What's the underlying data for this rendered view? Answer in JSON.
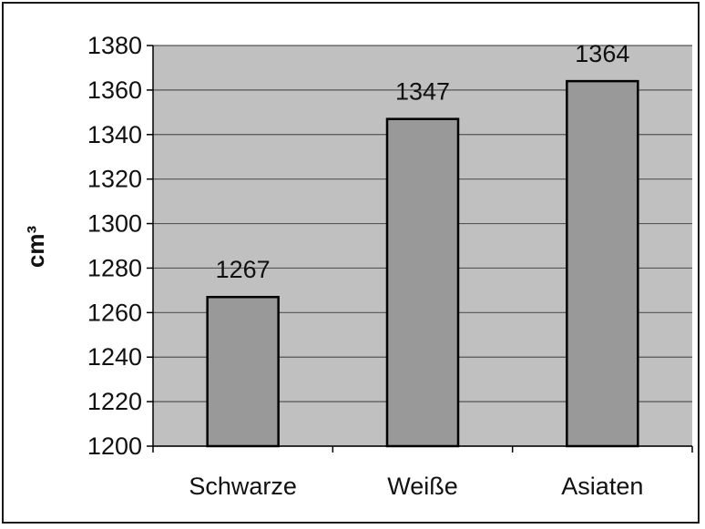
{
  "chart_data": {
    "type": "bar",
    "categories": [
      "Schwarze",
      "Weiße",
      "Asiaten"
    ],
    "values": [
      1267,
      1347,
      1364
    ],
    "data_labels": [
      "1267",
      "1347",
      "1364"
    ],
    "title": "",
    "xlabel": "",
    "ylabel": "cm³",
    "ylim": [
      1200,
      1380
    ],
    "yticks": [
      1200,
      1220,
      1240,
      1260,
      1280,
      1300,
      1320,
      1340,
      1360,
      1380
    ],
    "grid": true,
    "legend": "none"
  },
  "colors": {
    "plot_background": "#c0c0c0",
    "bar_fill": "#999999",
    "bar_stroke": "#000000",
    "grid": "#555555"
  }
}
